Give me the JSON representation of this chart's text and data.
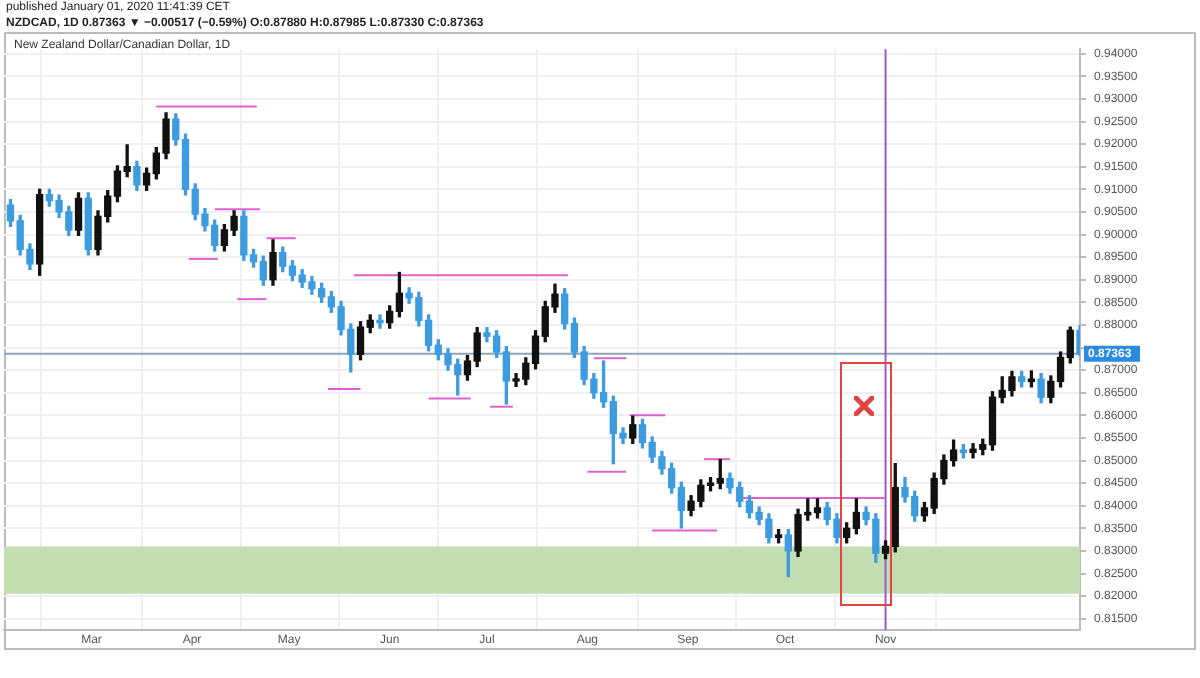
{
  "chart_data": {
    "type": "candlestick",
    "title": "New Zealand Dollar/Canadian Dollar, 1D",
    "annotations": [
      "published January 01, 2020 11:41:39 CET",
      "NZDCAD, 1D 0.87363 ▼ −0.00517 (−0.59%) O:0.87880 H:0.87985 L:0.87330 C:0.87363"
    ],
    "x": [
      "--02-04",
      "--02-07",
      "--02-10",
      "--02-13",
      "--02-16",
      "--02-19",
      "--02-22",
      "--02-25",
      "--02-28",
      "--03-03",
      "--03-06",
      "--03-09",
      "--03-12",
      "--03-15",
      "--03-18",
      "--03-21",
      "--03-24",
      "--03-27",
      "--03-30",
      "--04-02",
      "--04-05",
      "--04-08",
      "--04-11",
      "--04-14",
      "--04-17",
      "--04-20",
      "--04-23",
      "--04-26",
      "--04-29",
      "--05-02",
      "--05-05",
      "--05-08",
      "--05-11",
      "--05-14",
      "--05-17",
      "--05-20",
      "--05-23",
      "--05-26",
      "--05-29",
      "--06-01",
      "--06-04",
      "--06-07",
      "--06-10",
      "--06-13",
      "--06-16",
      "--06-19",
      "--06-22",
      "--06-25",
      "--06-28",
      "--07-01",
      "--07-04",
      "--07-07",
      "--07-10",
      "--07-13",
      "--07-16",
      "--07-19",
      "--07-22",
      "--07-25",
      "--07-28",
      "--07-31",
      "--08-03",
      "--08-06",
      "--08-09",
      "--08-12",
      "--08-15",
      "--08-18",
      "--08-21",
      "--08-24",
      "--08-27",
      "--08-30",
      "--09-02",
      "--09-05",
      "--09-08",
      "--09-11",
      "--09-14",
      "--09-17",
      "--09-20",
      "--09-23",
      "--09-26",
      "--09-29",
      "--10-02",
      "--10-05",
      "--10-08",
      "--10-11",
      "--10-14",
      "--10-17",
      "--10-20",
      "--10-23",
      "--10-26",
      "--10-29",
      "--11-01",
      "--11-04",
      "--11-07",
      "--11-10",
      "--11-13",
      "--11-16",
      "--11-19",
      "--11-22",
      "--11-25",
      "--11-28",
      "--12-01",
      "--12-04",
      "--12-07",
      "--12-10",
      "--12-13",
      "--12-16",
      "--12-19",
      "--12-22",
      "--12-25",
      "--12-28",
      "--12-31"
    ],
    "ohlc": [
      [
        0.9065,
        0.9077,
        0.9018,
        0.903
      ],
      [
        0.903,
        0.9042,
        0.8955,
        0.8967
      ],
      [
        0.8967,
        0.8979,
        0.8923,
        0.8935
      ],
      [
        0.8935,
        0.91,
        0.891,
        0.9088
      ],
      [
        0.9088,
        0.91,
        0.9063,
        0.9075
      ],
      [
        0.9075,
        0.9087,
        0.9038,
        0.905
      ],
      [
        0.905,
        0.9062,
        0.8998,
        0.901
      ],
      [
        0.901,
        0.9092,
        0.8998,
        0.908
      ],
      [
        0.908,
        0.9092,
        0.8955,
        0.8967
      ],
      [
        0.8967,
        0.9052,
        0.8955,
        0.904
      ],
      [
        0.904,
        0.9097,
        0.9028,
        0.9085
      ],
      [
        0.9085,
        0.9152,
        0.9073,
        0.914
      ],
      [
        0.914,
        0.9198,
        0.9128,
        0.915
      ],
      [
        0.915,
        0.9162,
        0.9098,
        0.911
      ],
      [
        0.911,
        0.9147,
        0.9098,
        0.9135
      ],
      [
        0.9135,
        0.9192,
        0.9123,
        0.918
      ],
      [
        0.918,
        0.9269,
        0.9168,
        0.9255
      ],
      [
        0.9255,
        0.9267,
        0.9198,
        0.921
      ],
      [
        0.921,
        0.9222,
        0.9088,
        0.91
      ],
      [
        0.91,
        0.9112,
        0.9033,
        0.9045
      ],
      [
        0.9045,
        0.9057,
        0.9008,
        0.902
      ],
      [
        0.902,
        0.9032,
        0.8964,
        0.8976
      ],
      [
        0.8976,
        0.9022,
        0.8964,
        0.901
      ],
      [
        0.901,
        0.9052,
        0.8998,
        0.904
      ],
      [
        0.904,
        0.9052,
        0.8943,
        0.8955
      ],
      [
        0.8955,
        0.8967,
        0.8928,
        0.894
      ],
      [
        0.894,
        0.8952,
        0.8888,
        0.89
      ],
      [
        0.89,
        0.8988,
        0.8888,
        0.896
      ],
      [
        0.896,
        0.8972,
        0.8918,
        0.893
      ],
      [
        0.893,
        0.8942,
        0.8898,
        0.891
      ],
      [
        0.891,
        0.8922,
        0.8883,
        0.8895
      ],
      [
        0.8895,
        0.8907,
        0.8868,
        0.888
      ],
      [
        0.888,
        0.8892,
        0.885,
        0.8862
      ],
      [
        0.8862,
        0.8874,
        0.8828,
        0.884
      ],
      [
        0.884,
        0.8852,
        0.8778,
        0.879
      ],
      [
        0.879,
        0.8802,
        0.8696,
        0.8735
      ],
      [
        0.8735,
        0.8807,
        0.8723,
        0.8795
      ],
      [
        0.8795,
        0.8822,
        0.8783,
        0.881
      ],
      [
        0.881,
        0.8822,
        0.8793,
        0.8805
      ],
      [
        0.8805,
        0.8842,
        0.8793,
        0.883
      ],
      [
        0.883,
        0.8916,
        0.8818,
        0.887
      ],
      [
        0.887,
        0.8882,
        0.8848,
        0.886
      ],
      [
        0.886,
        0.8872,
        0.8798,
        0.881
      ],
      [
        0.881,
        0.8822,
        0.8743,
        0.8755
      ],
      [
        0.8755,
        0.8767,
        0.8723,
        0.8735
      ],
      [
        0.8735,
        0.8747,
        0.87,
        0.8712
      ],
      [
        0.8712,
        0.8724,
        0.8645,
        0.869
      ],
      [
        0.869,
        0.8732,
        0.8678,
        0.872
      ],
      [
        0.872,
        0.8794,
        0.8708,
        0.8782
      ],
      [
        0.8782,
        0.8794,
        0.8763,
        0.8775
      ],
      [
        0.8775,
        0.8787,
        0.8728,
        0.874
      ],
      [
        0.874,
        0.8752,
        0.8625,
        0.8676
      ],
      [
        0.8676,
        0.8692,
        0.8664,
        0.868
      ],
      [
        0.868,
        0.8727,
        0.8668,
        0.8715
      ],
      [
        0.8715,
        0.8787,
        0.8703,
        0.8775
      ],
      [
        0.8775,
        0.8852,
        0.8763,
        0.884
      ],
      [
        0.884,
        0.889,
        0.8828,
        0.8868
      ],
      [
        0.8868,
        0.888,
        0.8791,
        0.8803
      ],
      [
        0.8803,
        0.8815,
        0.8728,
        0.874
      ],
      [
        0.874,
        0.8752,
        0.8668,
        0.868
      ],
      [
        0.868,
        0.8692,
        0.8638,
        0.865
      ],
      [
        0.865,
        0.872,
        0.8618,
        0.863
      ],
      [
        0.863,
        0.8642,
        0.8493,
        0.856
      ],
      [
        0.856,
        0.8572,
        0.8538,
        0.855
      ],
      [
        0.855,
        0.8598,
        0.8538,
        0.8579
      ],
      [
        0.8579,
        0.8591,
        0.8528,
        0.854
      ],
      [
        0.854,
        0.8552,
        0.8496,
        0.8508
      ],
      [
        0.8508,
        0.852,
        0.847,
        0.8482
      ],
      [
        0.8482,
        0.8494,
        0.8428,
        0.844
      ],
      [
        0.844,
        0.8452,
        0.8351,
        0.839
      ],
      [
        0.839,
        0.8422,
        0.8378,
        0.841
      ],
      [
        0.841,
        0.8457,
        0.8398,
        0.8445
      ],
      [
        0.8445,
        0.8462,
        0.8433,
        0.845
      ],
      [
        0.845,
        0.8502,
        0.8438,
        0.846
      ],
      [
        0.846,
        0.8472,
        0.8428,
        0.844
      ],
      [
        0.844,
        0.8452,
        0.8398,
        0.841
      ],
      [
        0.841,
        0.8422,
        0.8373,
        0.8385
      ],
      [
        0.8385,
        0.8397,
        0.8358,
        0.837
      ],
      [
        0.837,
        0.8382,
        0.8318,
        0.833
      ],
      [
        0.833,
        0.8347,
        0.8318,
        0.8335
      ],
      [
        0.8335,
        0.8347,
        0.8243,
        0.83
      ],
      [
        0.83,
        0.8392,
        0.8288,
        0.838
      ],
      [
        0.838,
        0.8415,
        0.8368,
        0.8385
      ],
      [
        0.8385,
        0.8415,
        0.8373,
        0.8395
      ],
      [
        0.8395,
        0.8407,
        0.8358,
        0.837
      ],
      [
        0.837,
        0.8382,
        0.8318,
        0.833
      ],
      [
        0.833,
        0.8362,
        0.8318,
        0.835
      ],
      [
        0.835,
        0.8415,
        0.8338,
        0.8385
      ],
      [
        0.8385,
        0.8397,
        0.8358,
        0.837
      ],
      [
        0.837,
        0.8382,
        0.8275,
        0.8295
      ],
      [
        0.8295,
        0.8322,
        0.8283,
        0.831
      ],
      [
        0.831,
        0.8493,
        0.8298,
        0.844
      ],
      [
        0.844,
        0.8462,
        0.8408,
        0.842
      ],
      [
        0.842,
        0.8432,
        0.8366,
        0.8378
      ],
      [
        0.8378,
        0.8407,
        0.8366,
        0.8395
      ],
      [
        0.8395,
        0.8472,
        0.8383,
        0.846
      ],
      [
        0.846,
        0.8512,
        0.8448,
        0.85
      ],
      [
        0.85,
        0.8545,
        0.8488,
        0.8523
      ],
      [
        0.8523,
        0.8535,
        0.8506,
        0.8518
      ],
      [
        0.8518,
        0.8537,
        0.8506,
        0.8525
      ],
      [
        0.8525,
        0.8547,
        0.8513,
        0.8535
      ],
      [
        0.8535,
        0.8652,
        0.8523,
        0.864
      ],
      [
        0.864,
        0.8685,
        0.8628,
        0.8655
      ],
      [
        0.8655,
        0.8697,
        0.8643,
        0.8685
      ],
      [
        0.8685,
        0.8697,
        0.8663,
        0.8675
      ],
      [
        0.8675,
        0.8698,
        0.8663,
        0.868
      ],
      [
        0.868,
        0.8692,
        0.8628,
        0.864
      ],
      [
        0.864,
        0.8687,
        0.8628,
        0.8675
      ],
      [
        0.8675,
        0.874,
        0.8663,
        0.8728
      ],
      [
        0.8728,
        0.8795,
        0.8716,
        0.8788
      ],
      [
        0.8788,
        0.87985,
        0.8733,
        0.87363
      ]
    ],
    "colors": [
      "#3d9be0",
      "#3d9be0",
      "#3d9be0",
      "#111111",
      "#3d9be0",
      "#3d9be0",
      "#3d9be0",
      "#111111",
      "#3d9be0",
      "#111111",
      "#111111",
      "#111111",
      "#111111",
      "#3d9be0",
      "#111111",
      "#111111",
      "#111111",
      "#3d9be0",
      "#3d9be0",
      "#3d9be0",
      "#3d9be0",
      "#3d9be0",
      "#111111",
      "#111111",
      "#3d9be0",
      "#3d9be0",
      "#3d9be0",
      "#111111",
      "#3d9be0",
      "#3d9be0",
      "#3d9be0",
      "#3d9be0",
      "#3d9be0",
      "#3d9be0",
      "#3d9be0",
      "#3d9be0",
      "#111111",
      "#111111",
      "#3d9be0",
      "#111111",
      "#111111",
      "#3d9be0",
      "#3d9be0",
      "#3d9be0",
      "#3d9be0",
      "#3d9be0",
      "#3d9be0",
      "#111111",
      "#111111",
      "#3d9be0",
      "#3d9be0",
      "#3d9be0",
      "#111111",
      "#111111",
      "#111111",
      "#111111",
      "#111111",
      "#3d9be0",
      "#3d9be0",
      "#3d9be0",
      "#3d9be0",
      "#3d9be0",
      "#3d9be0",
      "#3d9be0",
      "#111111",
      "#3d9be0",
      "#3d9be0",
      "#3d9be0",
      "#3d9be0",
      "#3d9be0",
      "#111111",
      "#111111",
      "#111111",
      "#111111",
      "#3d9be0",
      "#3d9be0",
      "#3d9be0",
      "#3d9be0",
      "#3d9be0",
      "#111111",
      "#3d9be0",
      "#111111",
      "#111111",
      "#111111",
      "#3d9be0",
      "#3d9be0",
      "#111111",
      "#111111",
      "#3d9be0",
      "#3d9be0",
      "#111111",
      "#111111",
      "#3d9be0",
      "#3d9be0",
      "#111111",
      "#111111",
      "#111111",
      "#111111",
      "#3d9be0",
      "#111111",
      "#111111",
      "#111111",
      "#111111",
      "#111111",
      "#3d9be0",
      "#111111",
      "#3d9be0",
      "#111111",
      "#111111",
      "#111111",
      "#3d9be0"
    ],
    "series": [
      {
        "type": "line",
        "color": "#e060d0",
        "x": [
          "--03-21",
          "--04-21"
        ],
        "values": [
          0.9283,
          0.9283
        ]
      },
      {
        "type": "line",
        "color": "#e060d0",
        "x": [
          "--04-08",
          "--04-22"
        ],
        "values": [
          0.9056,
          0.9056
        ]
      },
      {
        "type": "line",
        "color": "#e060d0",
        "x": [
          "--03-31",
          "--04-09"
        ],
        "values": [
          0.8946,
          0.8946
        ]
      },
      {
        "type": "line",
        "color": "#e060d0",
        "x": [
          "--04-24",
          "--05-03"
        ],
        "values": [
          0.8992,
          0.8992
        ]
      },
      {
        "type": "line",
        "color": "#e060d0",
        "x": [
          "--04-15",
          "--04-24"
        ],
        "values": [
          0.8857,
          0.8857
        ]
      },
      {
        "type": "line",
        "color": "#e060d0",
        "x": [
          "--05-21",
          "--07-26"
        ],
        "values": [
          0.891,
          0.891
        ]
      },
      {
        "type": "line",
        "color": "#e060d0",
        "x": [
          "--05-13",
          "--05-23"
        ],
        "values": [
          0.8658,
          0.8658
        ]
      },
      {
        "type": "line",
        "color": "#e060d0",
        "x": [
          "--06-13",
          "--06-26"
        ],
        "values": [
          0.8637,
          0.8637
        ]
      },
      {
        "type": "line",
        "color": "#e060d0",
        "x": [
          "--07-02",
          "--07-09"
        ],
        "values": [
          0.8619,
          0.8619
        ]
      },
      {
        "type": "line",
        "color": "#e060d0",
        "x": [
          "--08-03",
          "--08-13"
        ],
        "values": [
          0.8726,
          0.8726
        ]
      },
      {
        "type": "line",
        "color": "#e060d0",
        "x": [
          "--08-01",
          "--08-13"
        ],
        "values": [
          0.8475,
          0.8475
        ]
      },
      {
        "type": "line",
        "color": "#e060d0",
        "x": [
          "--08-14",
          "--08-25"
        ],
        "values": [
          0.86,
          0.86
        ]
      },
      {
        "type": "line",
        "color": "#e060d0",
        "x": [
          "--08-21",
          "--09-10"
        ],
        "values": [
          0.8345,
          0.8345
        ]
      },
      {
        "type": "line",
        "color": "#e060d0",
        "x": [
          "--09-06",
          "--09-14"
        ],
        "values": [
          0.8503,
          0.8503
        ]
      },
      {
        "type": "line",
        "color": "#e060d0",
        "x": [
          "--09-18",
          "--11-01"
        ],
        "values": [
          0.8417,
          0.8417
        ]
      }
    ],
    "xlim": [
      "--02-02",
      "--12-31"
    ],
    "xticks": [
      {
        "value": "--03-01",
        "label": "Mar"
      },
      {
        "value": "--04-01",
        "label": "Apr"
      },
      {
        "value": "--05-01",
        "label": "May"
      },
      {
        "value": "--06-01",
        "label": "Jun"
      },
      {
        "value": "--07-01",
        "label": "Jul"
      },
      {
        "value": "--08-01",
        "label": "Aug"
      },
      {
        "value": "--09-01",
        "label": "Sep"
      },
      {
        "value": "--10-01",
        "label": "Oct"
      },
      {
        "value": "--11-01",
        "label": "Nov"
      }
    ],
    "ylim": [
      0.8125,
      0.941
    ],
    "yticks": [
      {
        "value": 0.815,
        "label": "0.81500"
      },
      {
        "value": 0.82,
        "label": "0.82000"
      },
      {
        "value": 0.825,
        "label": "0.82500"
      },
      {
        "value": 0.83,
        "label": "0.83000"
      },
      {
        "value": 0.835,
        "label": "0.83500"
      },
      {
        "value": 0.84,
        "label": "0.84000"
      },
      {
        "value": 0.845,
        "label": "0.84500"
      },
      {
        "value": 0.85,
        "label": "0.85000"
      },
      {
        "value": 0.855,
        "label": "0.85500"
      },
      {
        "value": 0.86,
        "label": "0.86000"
      },
      {
        "value": 0.865,
        "label": "0.86500"
      },
      {
        "value": 0.87,
        "label": "0.87000"
      },
      {
        "value": 0.875,
        "label": null
      },
      {
        "value": 0.88,
        "label": "0.88000"
      },
      {
        "value": 0.885,
        "label": "0.88500"
      },
      {
        "value": 0.89,
        "label": "0.89000"
      },
      {
        "value": 0.895,
        "label": "0.89500"
      },
      {
        "value": 0.9,
        "label": "0.90000"
      },
      {
        "value": 0.905,
        "label": "0.90500"
      },
      {
        "value": 0.91,
        "label": "0.91000"
      },
      {
        "value": 0.915,
        "label": "0.91500"
      },
      {
        "value": 0.92,
        "label": "0.92000"
      },
      {
        "value": 0.925,
        "label": "0.92500"
      },
      {
        "value": 0.93,
        "label": "0.93000"
      },
      {
        "value": 0.935,
        "label": "0.93500"
      },
      {
        "value": 0.94,
        "label": "0.94000"
      }
    ],
    "ref_lines": [
      {
        "axis": "y",
        "value": 0.87363,
        "label": "0.87363",
        "color": "#8fa3b8"
      },
      {
        "axis": "x",
        "value": "--11-01",
        "color": "#9b59d0"
      }
    ],
    "bands": [
      {
        "axis": "y",
        "from": 0.8205,
        "to": 0.831,
        "color": "#c2deb0"
      }
    ],
    "grid": true
  }
}
